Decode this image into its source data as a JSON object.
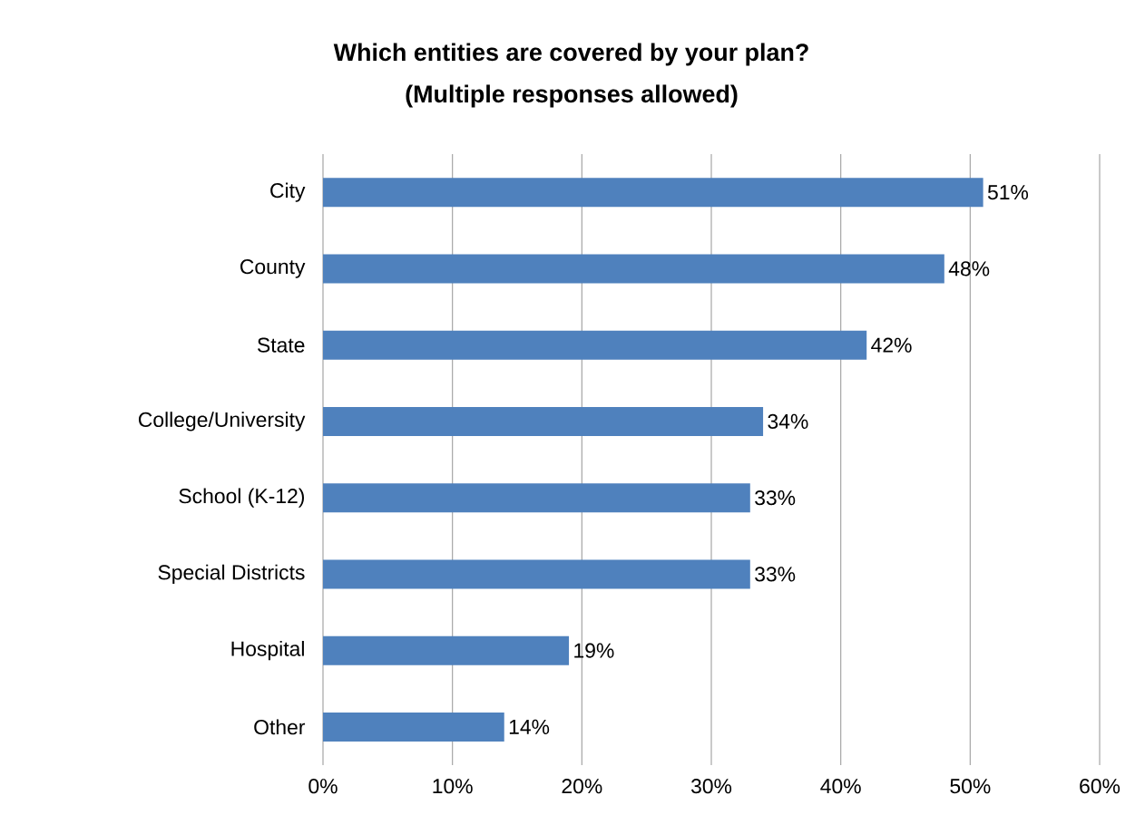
{
  "chart_data": {
    "type": "bar",
    "orientation": "horizontal",
    "title": "Which entities are covered by your plan?",
    "subtitle": "(Multiple responses allowed)",
    "categories": [
      "City",
      "County",
      "State",
      "College/University",
      "School (K-12)",
      "Special Districts",
      "Hospital",
      "Other"
    ],
    "values": [
      51,
      48,
      42,
      34,
      33,
      33,
      19,
      14
    ],
    "value_labels": [
      "51%",
      "48%",
      "42%",
      "34%",
      "33%",
      "33%",
      "19%",
      "14%"
    ],
    "color": "#4f81bd",
    "xlim": [
      0,
      60
    ],
    "xticks": [
      {
        "value": 0,
        "label": "0%"
      },
      {
        "value": 10,
        "label": "10%"
      },
      {
        "value": 20,
        "label": "20%"
      },
      {
        "value": 30,
        "label": "30%"
      },
      {
        "value": 40,
        "label": "40%"
      },
      {
        "value": 50,
        "label": "50%"
      },
      {
        "value": 60,
        "label": "60%"
      }
    ],
    "grid": "x"
  }
}
